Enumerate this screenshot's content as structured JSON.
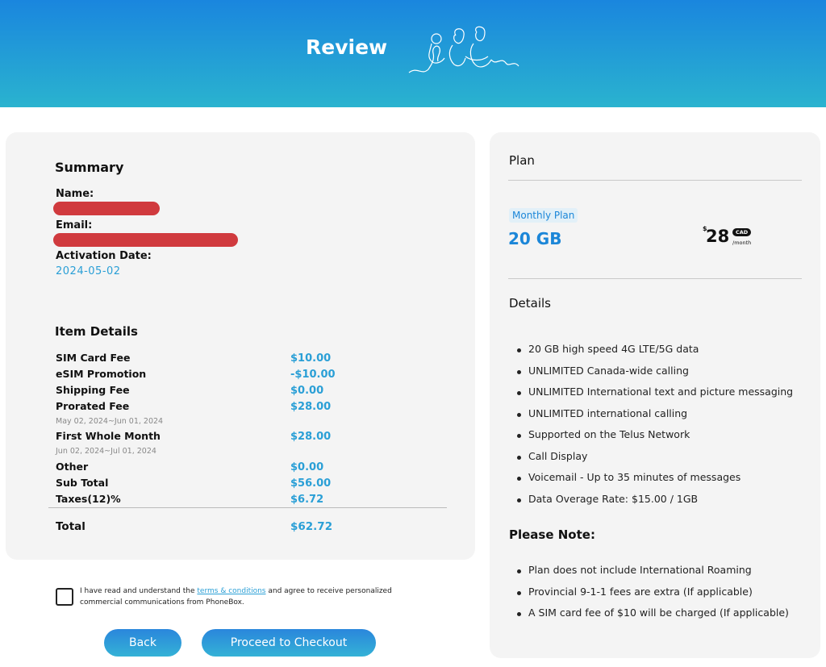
{
  "header": {
    "title": "Review"
  },
  "summary": {
    "heading": "Summary",
    "name_label": "Name:",
    "email_label": "Email:",
    "activation_label": "Activation Date:",
    "activation_value": "2024-05-02"
  },
  "items": {
    "heading": "Item Details",
    "rows": [
      {
        "label": "SIM Card Fee",
        "value": "$10.00"
      },
      {
        "label": "eSIM Promotion",
        "value": "-$10.00"
      },
      {
        "label": "Shipping Fee",
        "value": "$0.00"
      },
      {
        "label": "Prorated Fee",
        "value": "$28.00",
        "sub": "May 02, 2024~Jun 01, 2024"
      },
      {
        "label": "First Whole Month",
        "value": "$28.00",
        "sub": "Jun 02, 2024~Jul 01, 2024"
      },
      {
        "label": "Other",
        "value": "$0.00"
      },
      {
        "label": "Sub Total",
        "value": "$56.00"
      },
      {
        "label": "Taxes(12)%",
        "value": "$6.72"
      }
    ],
    "total_label": "Total",
    "total_value": "$62.72"
  },
  "terms": {
    "before": "I have read and understand the ",
    "link": "terms & conditions",
    "after": " and agree to receive personalized commercial communications from PhoneBox."
  },
  "buttons": {
    "back": "Back",
    "checkout": "Proceed to Checkout"
  },
  "plan": {
    "heading": "Plan",
    "badge": "Monthly Plan",
    "data": "20 GB",
    "currency_symbol": "$",
    "price": "28",
    "currency": "CAD",
    "period": "/month"
  },
  "details": {
    "heading": "Details",
    "items": [
      "20 GB high speed 4G LTE/5G data",
      "UNLIMITED Canada-wide calling",
      "UNLIMITED International text and picture messaging",
      "UNLIMITED international calling",
      "Supported on the Telus Network",
      "Call Display",
      "Voicemail - Up to 35 minutes of messages",
      "Data Overage Rate: $15.00 / 1GB"
    ]
  },
  "note": {
    "heading": "Please Note:",
    "items": [
      "Plan does not include International Roaming",
      "Provincial 9-1-1 fees are extra (If applicable)",
      "A SIM card fee of $10 will be charged (If applicable)"
    ]
  },
  "colors": {
    "accent": "#2a9fd6",
    "brand_blue": "#1b86d8",
    "redaction": "#d03a3e"
  }
}
